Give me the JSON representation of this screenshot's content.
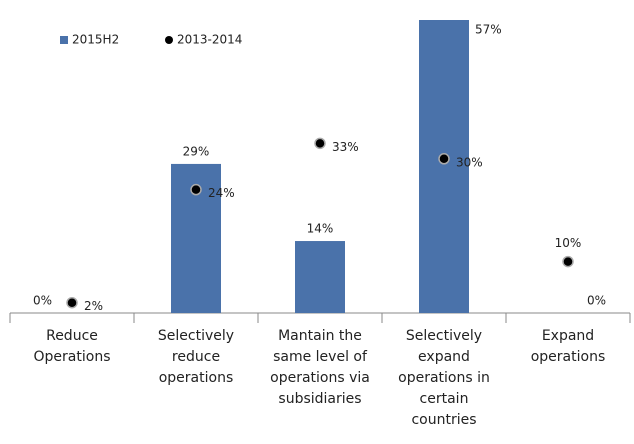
{
  "chart_data": {
    "type": "bar-scatter",
    "categories": [
      "Reduce Operations",
      "Selectively reduce operations",
      "Mantain the same level of operations via subsidiaries",
      "Selectively expand operations in certain countries",
      "Expand operations"
    ],
    "series": [
      {
        "name": "2015H2",
        "type": "bar",
        "color": "#4a72aa",
        "values": [
          0,
          29,
          14,
          57,
          0
        ],
        "value_labels": [
          "0%",
          "29%",
          "14%",
          "57%",
          "0%"
        ]
      },
      {
        "name": "2013-2014",
        "type": "scatter",
        "color": "#000000",
        "values": [
          2,
          24,
          33,
          30,
          10
        ],
        "value_labels": [
          "2%",
          "24%",
          "33%",
          "30%",
          "10%"
        ]
      }
    ],
    "legend": "top-left"
  }
}
